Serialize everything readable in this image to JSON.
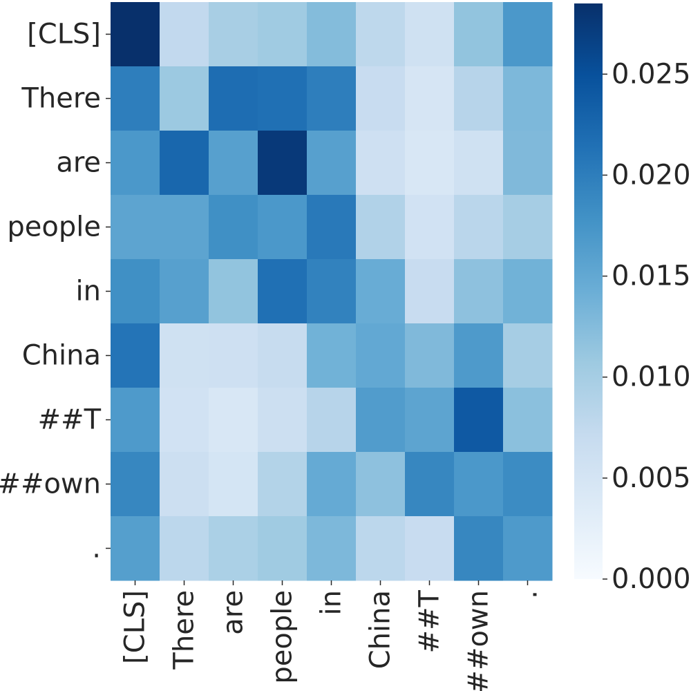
{
  "chart_data": {
    "type": "heatmap",
    "title": "",
    "xlabel": "",
    "ylabel": "",
    "x_categories": [
      "[CLS]",
      "There",
      "are",
      "people",
      "in",
      "China",
      "##T",
      "##own",
      "."
    ],
    "y_categories": [
      "[CLS]",
      "There",
      "are",
      "people",
      "in",
      "China",
      "##T",
      "##own",
      "."
    ],
    "values": [
      [
        0.0285,
        0.0075,
        0.0098,
        0.0105,
        0.0125,
        0.0078,
        0.0058,
        0.0115,
        0.017
      ],
      [
        0.02,
        0.0108,
        0.0218,
        0.0215,
        0.02,
        0.0068,
        0.0048,
        0.0085,
        0.013
      ],
      [
        0.017,
        0.0225,
        0.016,
        0.0275,
        0.016,
        0.006,
        0.0045,
        0.0058,
        0.0128
      ],
      [
        0.0155,
        0.0155,
        0.018,
        0.017,
        0.0205,
        0.009,
        0.0055,
        0.0082,
        0.01
      ],
      [
        0.018,
        0.016,
        0.0115,
        0.0215,
        0.0195,
        0.0145,
        0.0068,
        0.0118,
        0.0138
      ],
      [
        0.021,
        0.0058,
        0.006,
        0.007,
        0.0138,
        0.015,
        0.0128,
        0.0168,
        0.01
      ],
      [
        0.0168,
        0.0055,
        0.0045,
        0.0062,
        0.0085,
        0.0165,
        0.0155,
        0.024,
        0.012
      ],
      [
        0.019,
        0.0062,
        0.005,
        0.0088,
        0.0148,
        0.0118,
        0.019,
        0.017,
        0.0185
      ],
      [
        0.0162,
        0.008,
        0.0095,
        0.0105,
        0.013,
        0.008,
        0.0068,
        0.019,
        0.0168
      ]
    ],
    "vmin": 0.0,
    "vmax": 0.0285,
    "colormap": "Blues",
    "colorbar_ticks": [
      "0.000",
      "0.005",
      "0.010",
      "0.015",
      "0.020",
      "0.025"
    ],
    "colorbar_tick_values": [
      0.0,
      0.005,
      0.01,
      0.015,
      0.02,
      0.025
    ],
    "grid": false
  },
  "colors": {
    "text": "#262626",
    "blues_stops": [
      "#f7fbff",
      "#deebf7",
      "#c6dbef",
      "#9ecae1",
      "#6baed6",
      "#4292c6",
      "#2171b5",
      "#08519c",
      "#08306b"
    ]
  }
}
